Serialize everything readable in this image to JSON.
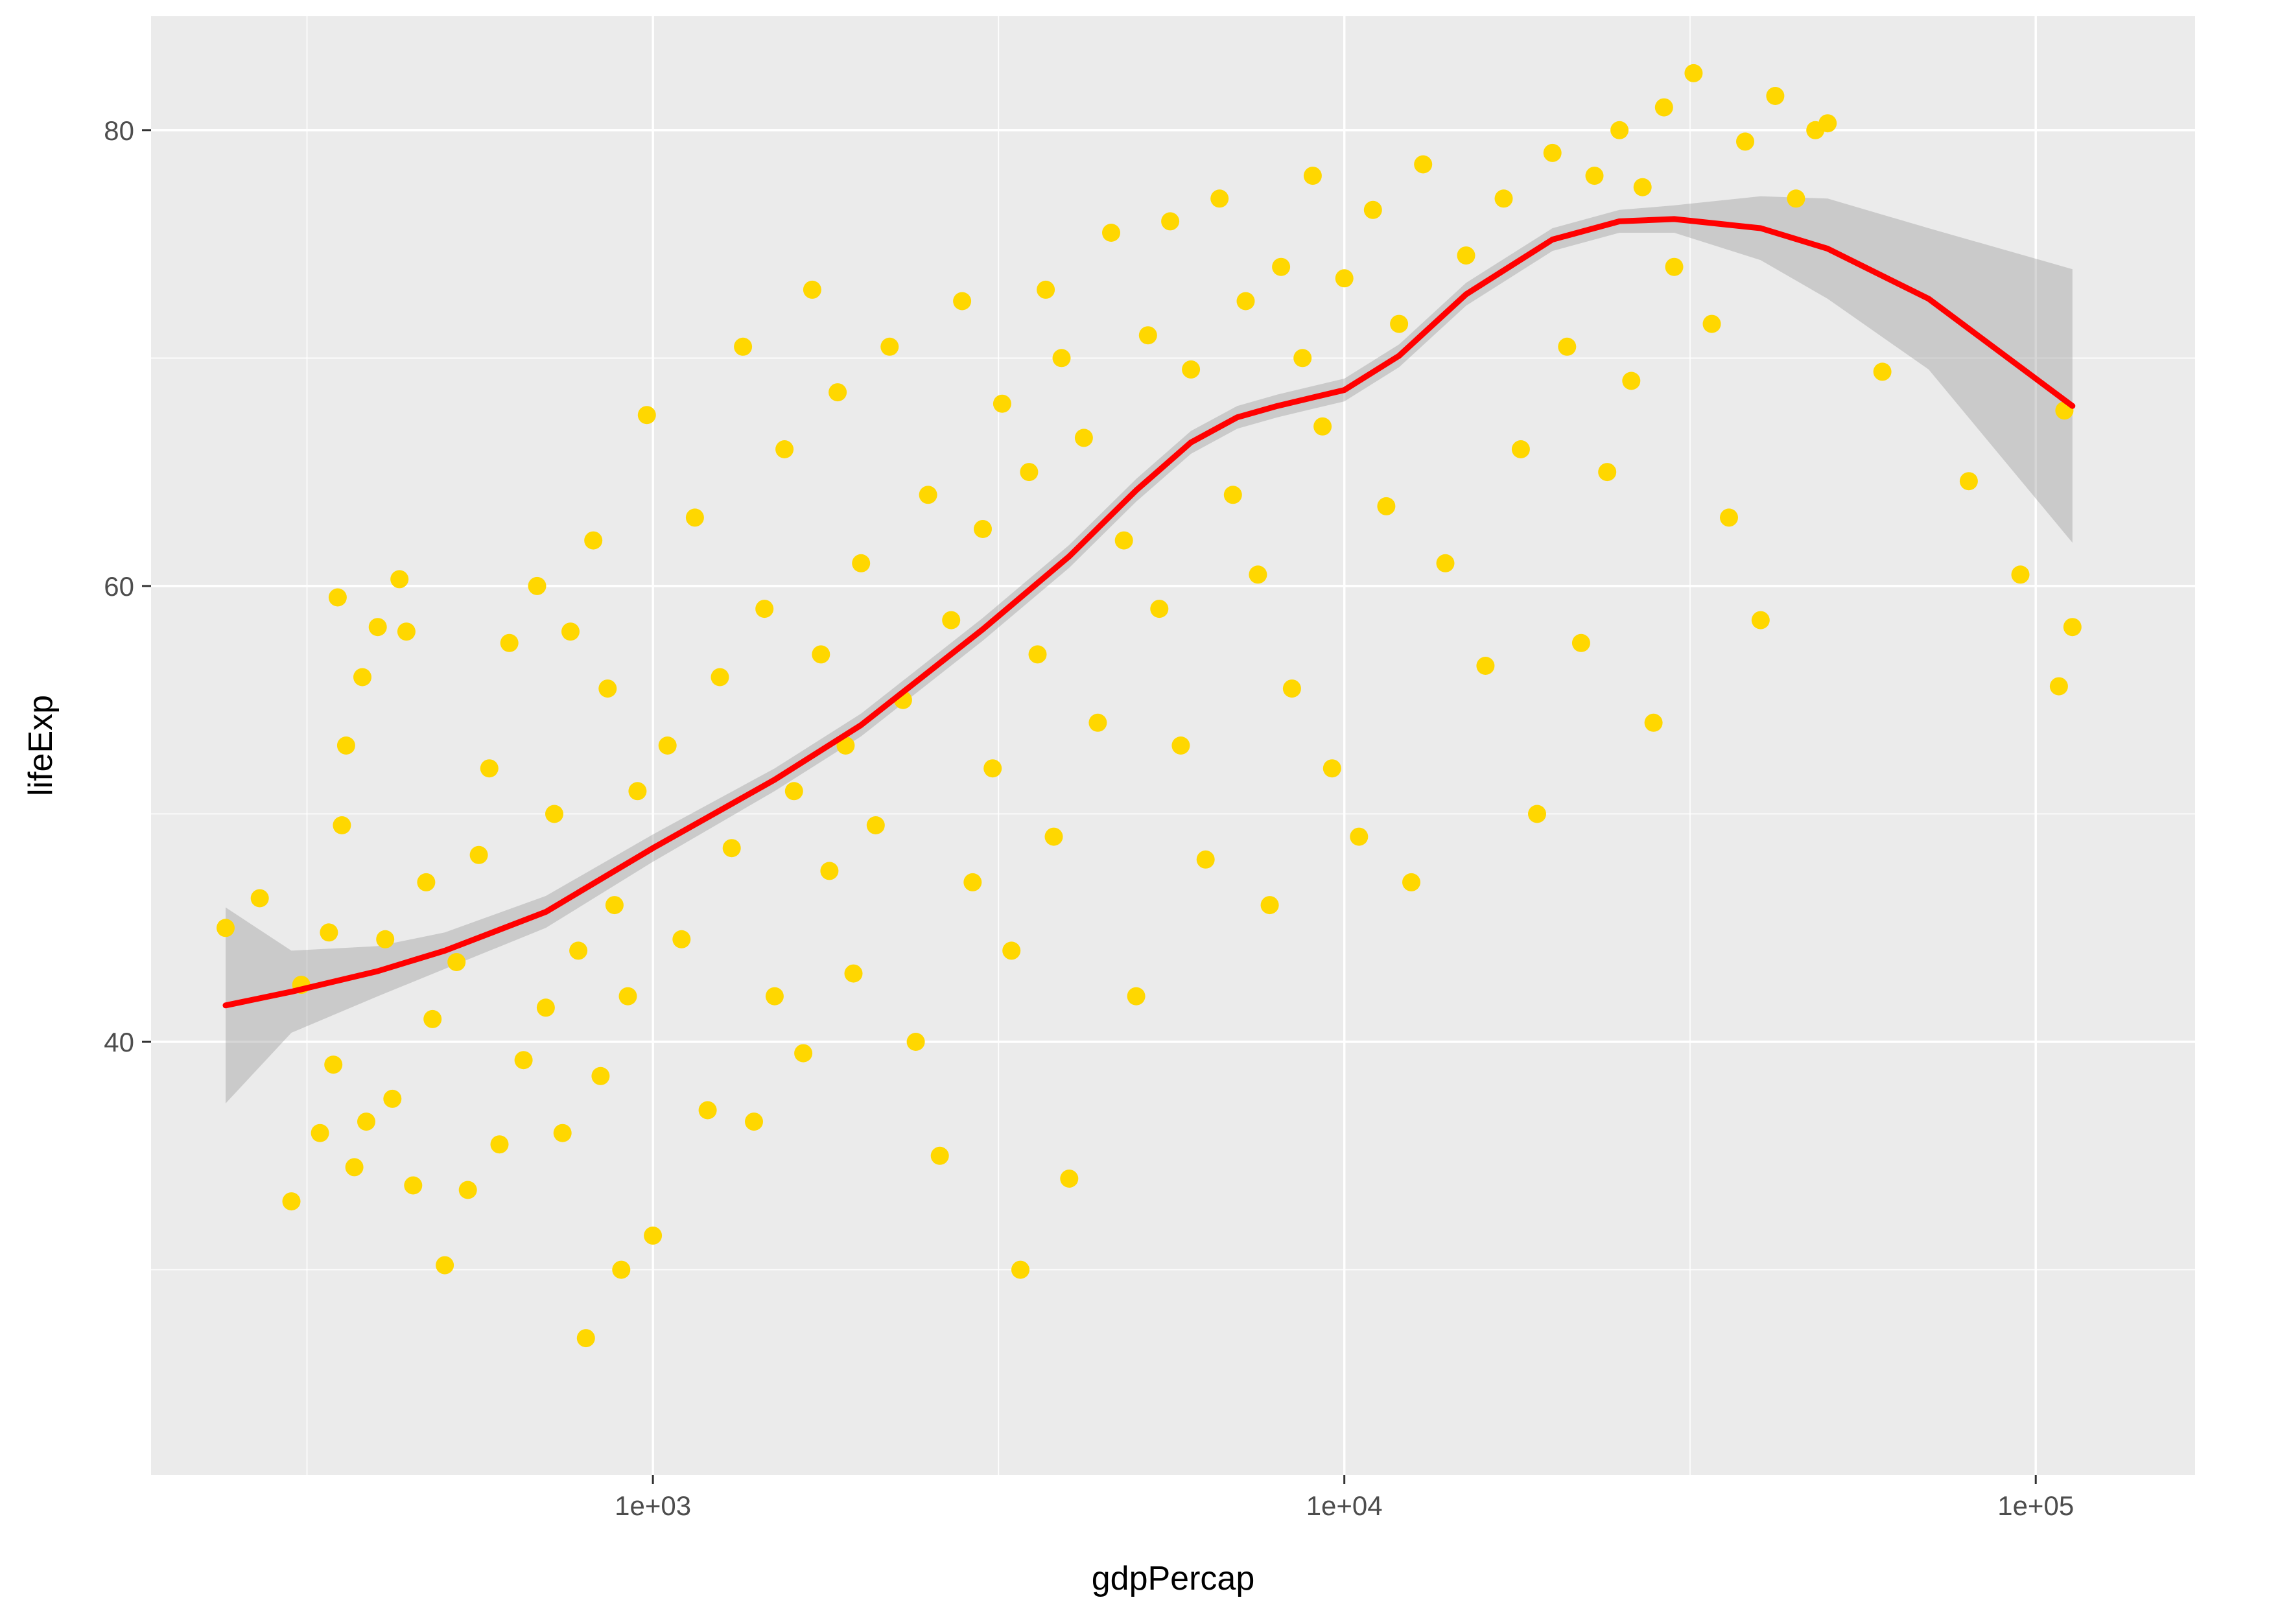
{
  "chart_data": {
    "type": "scatter",
    "xlabel": "gdpPercap",
    "ylabel": "lifeExp",
    "x_scale": "log10",
    "xlim": [
      188,
      170000
    ],
    "ylim": [
      21,
      85
    ],
    "grid": true,
    "x_ticks": [
      {
        "value": 1000,
        "label": "1e+03"
      },
      {
        "value": 10000,
        "label": "1e+04"
      },
      {
        "value": 100000,
        "label": "1e+05"
      }
    ],
    "x_minor_ticks": [
      316,
      3162,
      31623
    ],
    "y_ticks": [
      {
        "value": 40,
        "label": "40"
      },
      {
        "value": 60,
        "label": "60"
      },
      {
        "value": 80,
        "label": "80"
      }
    ],
    "y_minor_ticks": [
      30,
      50,
      70
    ],
    "colors": {
      "points": "#FFD700",
      "smooth_line": "#FF0000",
      "confidence_band": "#999999",
      "panel_background": "#EBEBEB",
      "grid": "#FFFFFF"
    },
    "smooth": {
      "method": "loess",
      "x": [
        241,
        300,
        400,
        500,
        700,
        1000,
        1500,
        2000,
        3000,
        4000,
        5000,
        6000,
        7000,
        8000,
        10000,
        12000,
        15000,
        20000,
        25000,
        30000,
        40000,
        50000,
        70000,
        113000
      ],
      "y": [
        41.6,
        42.2,
        43.1,
        44.0,
        45.7,
        48.5,
        51.5,
        53.9,
        58.1,
        61.3,
        64.2,
        66.3,
        67.4,
        67.9,
        68.6,
        70.1,
        72.8,
        75.2,
        76.0,
        76.1,
        75.7,
        74.8,
        72.6,
        67.9
      ],
      "lower": [
        37.3,
        40.4,
        42.0,
        43.2,
        45.0,
        47.9,
        51.0,
        53.4,
        57.6,
        60.8,
        63.7,
        65.8,
        66.9,
        67.4,
        68.1,
        69.6,
        72.3,
        74.7,
        75.5,
        75.5,
        74.3,
        72.6,
        69.5,
        61.9
      ],
      "upper": [
        45.9,
        44.0,
        44.2,
        44.8,
        46.4,
        49.1,
        52.0,
        54.4,
        58.6,
        61.8,
        64.7,
        66.8,
        67.9,
        68.4,
        69.1,
        70.6,
        73.3,
        75.7,
        76.5,
        76.7,
        77.1,
        77.0,
        75.7,
        73.9
      ]
    },
    "points": [
      [
        241,
        45.0
      ],
      [
        270,
        46.3
      ],
      [
        300,
        33.0
      ],
      [
        310,
        42.5
      ],
      [
        330,
        36.0
      ],
      [
        340,
        44.8
      ],
      [
        345,
        39.0
      ],
      [
        350,
        59.5
      ],
      [
        355,
        49.5
      ],
      [
        360,
        53.0
      ],
      [
        370,
        34.5
      ],
      [
        380,
        56.0
      ],
      [
        385,
        36.5
      ],
      [
        400,
        58.2
      ],
      [
        410,
        44.5
      ],
      [
        420,
        37.5
      ],
      [
        430,
        60.3
      ],
      [
        440,
        58.0
      ],
      [
        450,
        33.7
      ],
      [
        470,
        47.0
      ],
      [
        480,
        41.0
      ],
      [
        500,
        30.2
      ],
      [
        520,
        43.5
      ],
      [
        540,
        33.5
      ],
      [
        560,
        48.2
      ],
      [
        580,
        52.0
      ],
      [
        600,
        35.5
      ],
      [
        620,
        57.5
      ],
      [
        650,
        39.2
      ],
      [
        680,
        60.0
      ],
      [
        700,
        41.5
      ],
      [
        720,
        50.0
      ],
      [
        740,
        36.0
      ],
      [
        760,
        58.0
      ],
      [
        780,
        44.0
      ],
      [
        800,
        27.0
      ],
      [
        820,
        62.0
      ],
      [
        840,
        38.5
      ],
      [
        860,
        55.5
      ],
      [
        880,
        46.0
      ],
      [
        900,
        30.0
      ],
      [
        920,
        42.0
      ],
      [
        950,
        51.0
      ],
      [
        980,
        67.5
      ],
      [
        1000,
        31.5
      ],
      [
        1050,
        53.0
      ],
      [
        1100,
        44.5
      ],
      [
        1150,
        63.0
      ],
      [
        1200,
        37.0
      ],
      [
        1250,
        56.0
      ],
      [
        1300,
        48.5
      ],
      [
        1350,
        70.5
      ],
      [
        1400,
        36.5
      ],
      [
        1450,
        59.0
      ],
      [
        1500,
        42.0
      ],
      [
        1550,
        66.0
      ],
      [
        1600,
        51.0
      ],
      [
        1650,
        39.5
      ],
      [
        1700,
        73.0
      ],
      [
        1750,
        57.0
      ],
      [
        1800,
        47.5
      ],
      [
        1850,
        68.5
      ],
      [
        1900,
        53.0
      ],
      [
        1950,
        43.0
      ],
      [
        2000,
        61.0
      ],
      [
        2100,
        49.5
      ],
      [
        2200,
        70.5
      ],
      [
        2300,
        55.0
      ],
      [
        2400,
        40.0
      ],
      [
        2500,
        64.0
      ],
      [
        2600,
        35.0
      ],
      [
        2700,
        58.5
      ],
      [
        2800,
        72.5
      ],
      [
        2900,
        47.0
      ],
      [
        3000,
        62.5
      ],
      [
        3100,
        52.0
      ],
      [
        3200,
        68.0
      ],
      [
        3300,
        44.0
      ],
      [
        3400,
        30.0
      ],
      [
        3500,
        65.0
      ],
      [
        3600,
        57.0
      ],
      [
        3700,
        73.0
      ],
      [
        3800,
        49.0
      ],
      [
        3900,
        70.0
      ],
      [
        4000,
        34.0
      ],
      [
        4200,
        66.5
      ],
      [
        4400,
        54.0
      ],
      [
        4600,
        75.5
      ],
      [
        4800,
        62.0
      ],
      [
        5000,
        42.0
      ],
      [
        5200,
        71.0
      ],
      [
        5400,
        59.0
      ],
      [
        5600,
        76.0
      ],
      [
        5800,
        53.0
      ],
      [
        6000,
        69.5
      ],
      [
        6300,
        48.0
      ],
      [
        6600,
        77.0
      ],
      [
        6900,
        64.0
      ],
      [
        7200,
        72.5
      ],
      [
        7500,
        60.5
      ],
      [
        7800,
        46.0
      ],
      [
        8100,
        74.0
      ],
      [
        8400,
        55.5
      ],
      [
        8700,
        70.0
      ],
      [
        9000,
        78.0
      ],
      [
        9300,
        67.0
      ],
      [
        9600,
        52.0
      ],
      [
        10000,
        73.5
      ],
      [
        10500,
        49.0
      ],
      [
        11000,
        76.5
      ],
      [
        11500,
        63.5
      ],
      [
        12000,
        71.5
      ],
      [
        12500,
        47.0
      ],
      [
        13000,
        78.5
      ],
      [
        14000,
        61.0
      ],
      [
        15000,
        74.5
      ],
      [
        16000,
        56.5
      ],
      [
        17000,
        77.0
      ],
      [
        18000,
        66.0
      ],
      [
        19000,
        50.0
      ],
      [
        20000,
        79.0
      ],
      [
        21000,
        70.5
      ],
      [
        22000,
        57.5
      ],
      [
        23000,
        78.0
      ],
      [
        24000,
        65.0
      ],
      [
        25000,
        80.0
      ],
      [
        26000,
        69.0
      ],
      [
        27000,
        77.5
      ],
      [
        28000,
        54.0
      ],
      [
        29000,
        81.0
      ],
      [
        30000,
        74.0
      ],
      [
        32000,
        82.5
      ],
      [
        34000,
        71.5
      ],
      [
        36000,
        63.0
      ],
      [
        38000,
        79.5
      ],
      [
        40000,
        58.5
      ],
      [
        42000,
        81.5
      ],
      [
        45000,
        77.0
      ],
      [
        48000,
        80.0
      ],
      [
        50000,
        80.3
      ],
      [
        60000,
        69.4
      ],
      [
        80000,
        64.6
      ],
      [
        95000,
        60.5
      ],
      [
        108000,
        55.6
      ],
      [
        110000,
        67.7
      ],
      [
        113000,
        58.2
      ]
    ]
  }
}
